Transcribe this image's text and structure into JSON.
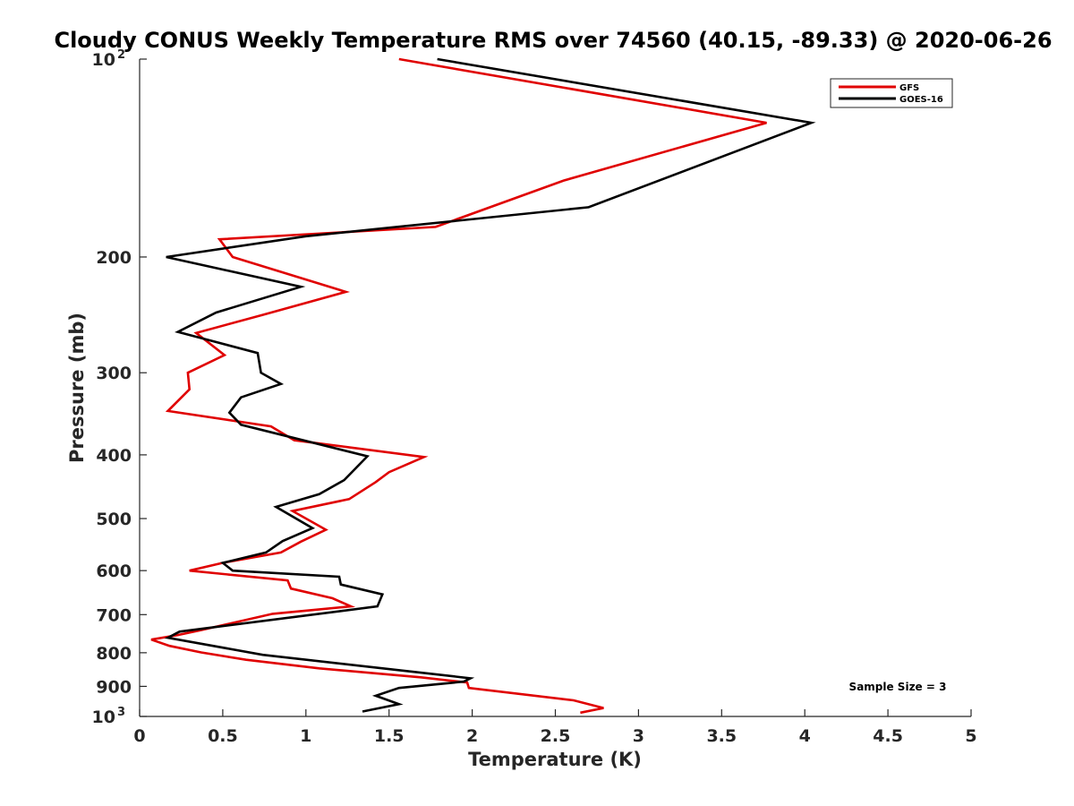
{
  "chart_data": {
    "type": "line",
    "title": "Cloudy CONUS Weekly Temperature RMS over 74560 (40.15, -89.33) @ 2020-06-26",
    "xlabel": "Temperature (K)",
    "ylabel": "Pressure (mb)",
    "xlim": [
      0,
      5
    ],
    "ylim": [
      100,
      1000
    ],
    "y_scale": "log",
    "y_reversed": true,
    "grid": false,
    "legend_position": "top-right",
    "x_ticks": [
      "0",
      "0.5",
      "1",
      "1.5",
      "2",
      "2.5",
      "3",
      "3.5",
      "4",
      "4.5",
      "5"
    ],
    "y_ticks": [
      {
        "value": 100,
        "label": "10",
        "exp": "2"
      },
      {
        "value": 200,
        "label": "200"
      },
      {
        "value": 300,
        "label": "300"
      },
      {
        "value": 400,
        "label": "400"
      },
      {
        "value": 500,
        "label": "500"
      },
      {
        "value": 600,
        "label": "600"
      },
      {
        "value": 700,
        "label": "700"
      },
      {
        "value": 800,
        "label": "800"
      },
      {
        "value": 900,
        "label": "900"
      },
      {
        "value": 1000,
        "label": "10",
        "exp": "3"
      }
    ],
    "annotation": "Sample Size = 3",
    "series": [
      {
        "name": "GFS",
        "color": "#e00000",
        "points": [
          [
            1.56,
            100
          ],
          [
            3.77,
            125
          ],
          [
            2.55,
            153
          ],
          [
            1.78,
            180
          ],
          [
            0.48,
            188
          ],
          [
            0.56,
            200
          ],
          [
            1.24,
            226
          ],
          [
            0.74,
            245
          ],
          [
            0.34,
            261
          ],
          [
            0.51,
            282
          ],
          [
            0.29,
            300
          ],
          [
            0.3,
            318
          ],
          [
            0.17,
            343
          ],
          [
            0.79,
            362
          ],
          [
            0.93,
            380
          ],
          [
            1.71,
            403
          ],
          [
            1.5,
            425
          ],
          [
            1.42,
            440
          ],
          [
            1.26,
            467
          ],
          [
            0.92,
            487
          ],
          [
            1.12,
            520
          ],
          [
            0.97,
            542
          ],
          [
            0.85,
            563
          ],
          [
            0.5,
            584
          ],
          [
            0.3,
            600
          ],
          [
            0.89,
            621
          ],
          [
            0.91,
            639
          ],
          [
            1.16,
            661
          ],
          [
            1.27,
            680
          ],
          [
            0.8,
            698
          ],
          [
            0.36,
            740
          ],
          [
            0.23,
            752
          ],
          [
            0.07,
            764
          ],
          [
            0.18,
            781
          ],
          [
            0.37,
            799
          ],
          [
            0.64,
            820
          ],
          [
            1.08,
            845
          ],
          [
            1.69,
            872
          ],
          [
            1.97,
            888
          ],
          [
            1.98,
            905
          ],
          [
            2.61,
            945
          ],
          [
            2.79,
            971
          ],
          [
            2.65,
            987
          ]
        ]
      },
      {
        "name": "GOES-16",
        "color": "#000000",
        "points": [
          [
            1.79,
            100
          ],
          [
            4.04,
            125
          ],
          [
            2.7,
            168
          ],
          [
            1.0,
            186
          ],
          [
            0.16,
            200
          ],
          [
            0.97,
            222
          ],
          [
            0.46,
            243
          ],
          [
            0.23,
            260
          ],
          [
            0.71,
            280
          ],
          [
            0.73,
            300
          ],
          [
            0.85,
            312
          ],
          [
            0.61,
            327
          ],
          [
            0.54,
            345
          ],
          [
            0.61,
            360
          ],
          [
            1.37,
            402
          ],
          [
            1.23,
            437
          ],
          [
            1.08,
            459
          ],
          [
            0.82,
            480
          ],
          [
            1.04,
            517
          ],
          [
            0.86,
            541
          ],
          [
            0.76,
            563
          ],
          [
            0.5,
            584
          ],
          [
            0.56,
            600
          ],
          [
            1.2,
            613
          ],
          [
            1.21,
            630
          ],
          [
            1.46,
            652
          ],
          [
            1.43,
            680
          ],
          [
            0.24,
            743
          ],
          [
            0.17,
            759
          ],
          [
            0.74,
            806
          ],
          [
            1.66,
            856
          ],
          [
            1.99,
            875
          ],
          [
            1.95,
            885
          ],
          [
            1.56,
            905
          ],
          [
            1.42,
            930
          ],
          [
            1.56,
            958
          ],
          [
            1.34,
            983
          ]
        ]
      }
    ]
  }
}
